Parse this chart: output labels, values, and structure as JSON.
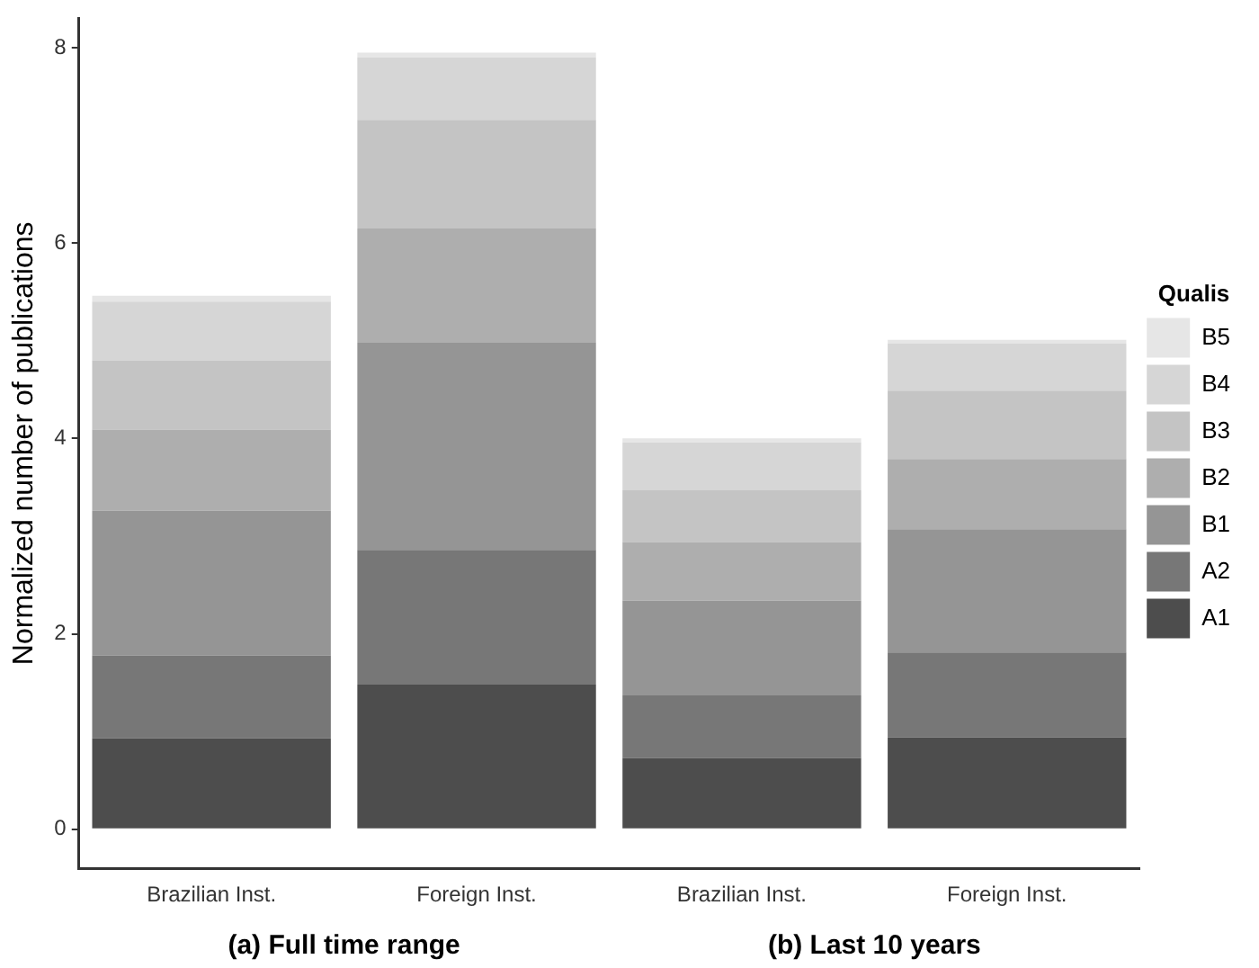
{
  "chart_data": {
    "type": "bar",
    "stacked": true,
    "ylabel": "Normalized number of publications",
    "legend_title": "Qualis",
    "categories": [
      "Brazilian Inst.",
      "Foreign Inst.",
      "Brazilian Inst.",
      "Foreign Inst."
    ],
    "series": [
      {
        "name": "A1",
        "color": "#4d4d4d",
        "values": [
          0.93,
          1.48,
          0.73,
          0.94
        ]
      },
      {
        "name": "A2",
        "color": "#777777",
        "values": [
          0.85,
          1.38,
          0.64,
          0.87
        ]
      },
      {
        "name": "B1",
        "color": "#959595",
        "values": [
          1.48,
          2.12,
          0.97,
          1.26
        ]
      },
      {
        "name": "B2",
        "color": "#aeaeae",
        "values": [
          0.83,
          1.17,
          0.6,
          0.72
        ]
      },
      {
        "name": "B3",
        "color": "#c4c4c4",
        "values": [
          0.71,
          1.11,
          0.53,
          0.7
        ]
      },
      {
        "name": "B4",
        "color": "#d6d6d6",
        "values": [
          0.6,
          0.64,
          0.49,
          0.48
        ]
      },
      {
        "name": "B5",
        "color": "#e6e6e6",
        "values": [
          0.06,
          0.05,
          0.04,
          0.04
        ]
      }
    ],
    "ylim": [
      -0.4,
      8.3
    ],
    "yticks": [
      0,
      2,
      4,
      6,
      8
    ],
    "grid": false,
    "legend": "right",
    "annotations": [
      "(a) Full time range",
      "(b) Last 10 years"
    ]
  }
}
